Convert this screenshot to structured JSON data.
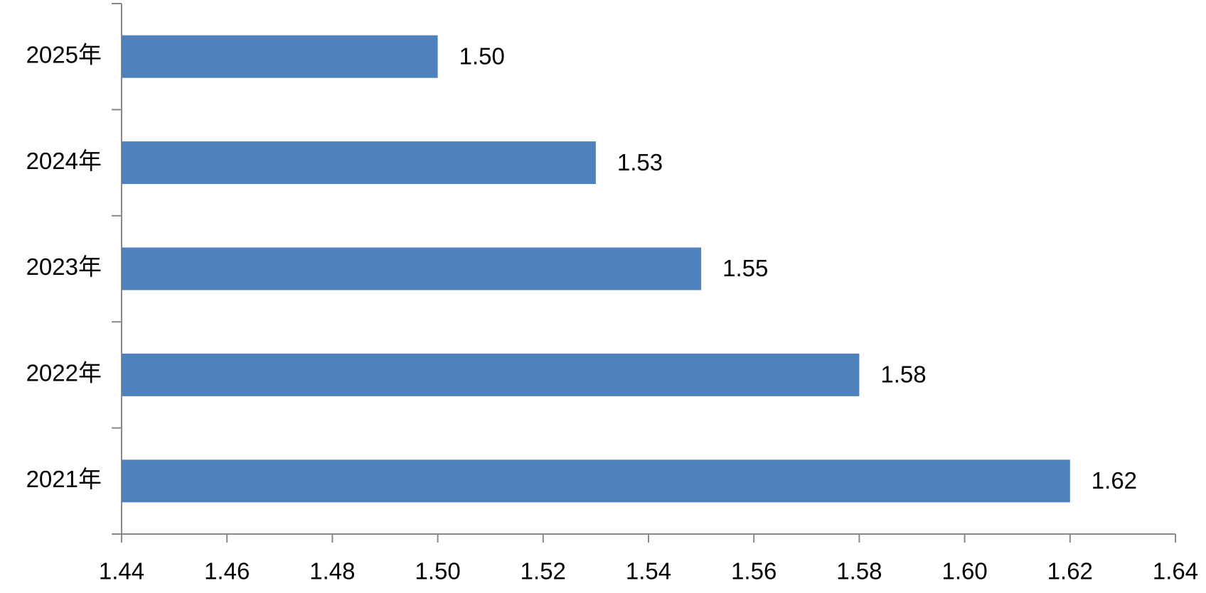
{
  "chart_data": {
    "type": "barh",
    "categories": [
      "2025年",
      "2024年",
      "2023年",
      "2022年",
      "2021年"
    ],
    "values": [
      1.5,
      1.53,
      1.55,
      1.58,
      1.62
    ],
    "value_labels": [
      "1.50",
      "1.53",
      "1.55",
      "1.58",
      "1.62"
    ],
    "color": "#4f81bd",
    "xlim": [
      1.44,
      1.64
    ],
    "xticks": [
      1.44,
      1.46,
      1.48,
      {
        "value": 1.5,
        "label": "1.50"
      },
      1.52,
      1.54,
      1.56,
      1.58,
      {
        "value": 1.6,
        "label": "1.60"
      },
      1.62,
      1.64
    ],
    "grid": false
  }
}
